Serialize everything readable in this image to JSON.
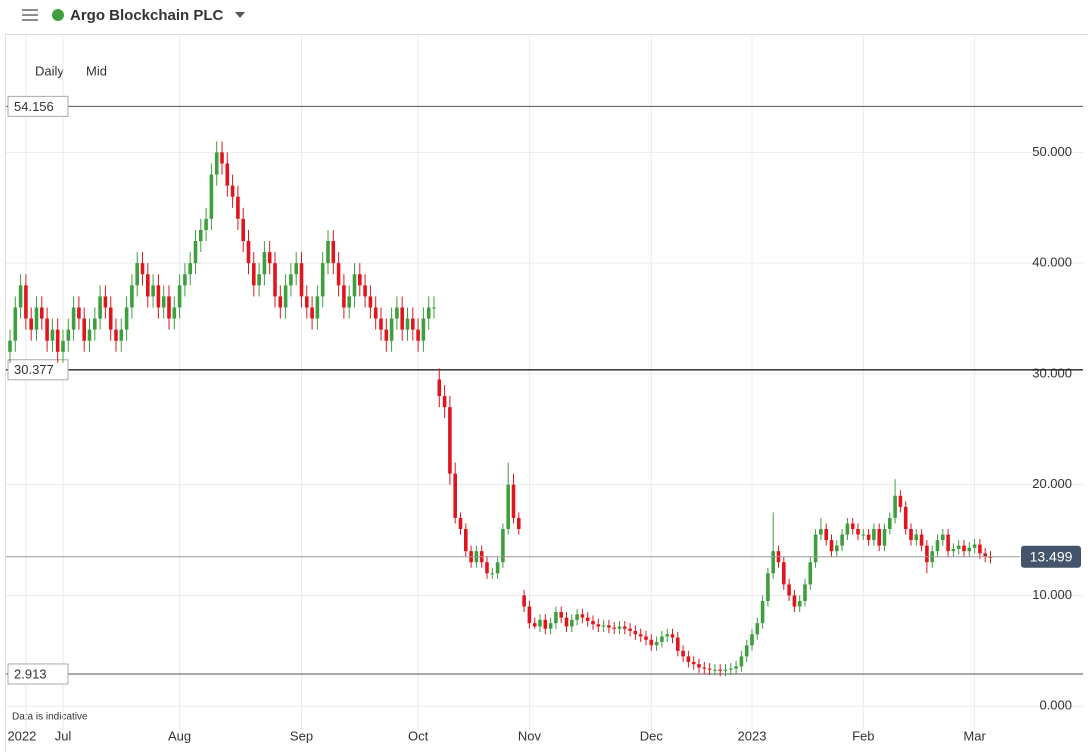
{
  "chart_data": {
    "type": "candlestick",
    "title": "Argo Blockchain PLC",
    "interval": "Daily",
    "price_type": "Mid",
    "note": "Data is indicative",
    "up_color": "#3f9f3f",
    "down_color": "#e0161e",
    "ylim": [
      -3.5,
      60.6
    ],
    "yticks": [
      {
        "value": 0,
        "label": "0.000"
      },
      {
        "value": 10,
        "label": "10.000"
      },
      {
        "value": 20,
        "label": "20.000"
      },
      {
        "value": 30,
        "label": "30.000"
      },
      {
        "value": 40,
        "label": "40.000"
      },
      {
        "value": 50,
        "label": "50.000"
      }
    ],
    "grid": true,
    "reference_lines": [
      54.156,
      30.377,
      2.913
    ],
    "last_price": 13.499,
    "categories": [
      null,
      null,
      null,
      "2022",
      null,
      null,
      null,
      null,
      null,
      null,
      "Jul",
      null,
      null,
      null,
      null,
      null,
      null,
      null,
      null,
      null,
      null,
      null,
      null,
      null,
      null,
      null,
      null,
      null,
      null,
      null,
      null,
      null,
      "Aug",
      null,
      null,
      null,
      null,
      null,
      null,
      null,
      null,
      null,
      null,
      null,
      null,
      null,
      null,
      null,
      null,
      null,
      null,
      null,
      null,
      null,
      null,
      "Sep",
      null,
      null,
      null,
      null,
      null,
      null,
      null,
      null,
      null,
      null,
      null,
      null,
      null,
      null,
      null,
      null,
      null,
      null,
      null,
      null,
      null,
      "Oct",
      null,
      null,
      null,
      null,
      null,
      null,
      null,
      null,
      null,
      null,
      null,
      null,
      null,
      null,
      null,
      null,
      null,
      null,
      null,
      null,
      "Nov",
      null,
      null,
      null,
      null,
      null,
      null,
      null,
      null,
      null,
      null,
      null,
      null,
      null,
      null,
      null,
      null,
      null,
      null,
      null,
      null,
      null,
      null,
      "Dec",
      null,
      null,
      null,
      null,
      null,
      null,
      null,
      null,
      null,
      null,
      null,
      null,
      null,
      null,
      null,
      null,
      null,
      null,
      "2023",
      null,
      null,
      null,
      null,
      null,
      null,
      null,
      null,
      null,
      null,
      null,
      null,
      null,
      null,
      null,
      null,
      null,
      null,
      null,
      null,
      "Feb",
      null,
      null,
      null,
      null,
      null,
      null,
      null,
      null,
      null,
      null,
      null,
      null,
      null,
      null,
      null,
      null,
      null,
      null,
      null,
      null,
      "Mar",
      null,
      null,
      null
    ],
    "open": [
      32,
      33,
      36,
      38,
      35,
      34,
      36,
      35,
      33,
      34,
      32,
      33,
      34,
      36,
      35,
      33,
      34,
      35,
      37,
      36,
      34,
      33,
      34,
      36,
      38,
      40,
      39,
      37,
      38,
      36,
      37,
      35,
      36,
      38,
      39,
      40,
      42,
      43,
      44,
      48,
      50,
      49,
      47,
      46,
      44,
      42,
      40,
      38,
      39,
      41,
      40,
      37,
      36,
      38,
      39,
      40,
      37,
      36,
      35,
      37,
      40,
      42,
      40,
      38,
      36,
      37,
      39,
      38,
      37,
      36,
      35,
      34,
      33,
      35,
      36,
      34,
      35,
      34,
      33,
      35,
      36,
      29.5,
      28,
      27,
      21,
      17,
      16,
      14,
      13,
      14,
      13,
      12,
      12,
      13,
      16,
      20,
      17,
      10,
      9,
      7.5,
      7.2,
      7.8,
      7,
      7.5,
      8.5,
      8,
      7.2,
      7.8,
      8.3,
      8,
      7.7,
      7.4,
      7.2,
      7.3,
      7.1,
      7,
      7.2,
      7,
      6.8,
      6.5,
      6.3,
      6,
      5.5,
      5.8,
      6.3,
      6.5,
      6.2,
      5,
      4.5,
      4,
      3.8,
      3.5,
      3.4,
      3.3,
      3.3,
      3.2,
      3.3,
      3.4,
      3.6,
      4.5,
      5.5,
      6.5,
      7.5,
      9.5,
      12,
      14,
      13,
      11,
      10,
      9,
      9.5,
      11,
      13,
      15.5,
      16,
      15,
      14,
      14.5,
      15.5,
      16.5,
      16,
      15.5,
      15.5,
      15,
      16,
      14.5,
      16,
      17,
      19,
      18,
      16,
      15,
      15.5,
      14.5,
      13,
      14,
      15,
      15.5,
      14,
      14.2,
      14.5,
      14,
      14.3,
      14.6,
      13.8,
      13.5
    ],
    "high": [
      34,
      37,
      39,
      39,
      36,
      37,
      37,
      36,
      35,
      35,
      34,
      35,
      37,
      37,
      36,
      35,
      36,
      38,
      38,
      37,
      35,
      35,
      37,
      39,
      41,
      41,
      40,
      39,
      39,
      38,
      38,
      37,
      39,
      40,
      41,
      43,
      44,
      45,
      49,
      51,
      51,
      50,
      48,
      47,
      45,
      43,
      41,
      40,
      42,
      42,
      41,
      38,
      39,
      40,
      41,
      41,
      38,
      37,
      38,
      41,
      43,
      43,
      41,
      39,
      38,
      40,
      40,
      39,
      38,
      37,
      36,
      35,
      36,
      37,
      37,
      36,
      36,
      35,
      36,
      37,
      37,
      30.5,
      29,
      28,
      22,
      17.5,
      16.5,
      14.5,
      14.5,
      14.5,
      13.5,
      12.5,
      13.5,
      16.5,
      22,
      21,
      17.5,
      10.5,
      9.5,
      8,
      8.3,
      8.3,
      8,
      9,
      9,
      8.5,
      8.3,
      8.8,
      8.8,
      8.5,
      8.2,
      7.9,
      7.8,
      7.8,
      7.6,
      7.7,
      7.7,
      7.5,
      7.3,
      7,
      6.8,
      6.5,
      6.3,
      6.8,
      7,
      7,
      6.7,
      5.5,
      5,
      4.5,
      4.3,
      4,
      3.9,
      3.8,
      3.8,
      3.8,
      3.9,
      4.1,
      5,
      6,
      7,
      8,
      10,
      12.5,
      17.5,
      14.5,
      13.5,
      11.5,
      10.5,
      10,
      11.5,
      13.5,
      16,
      17,
      16.5,
      15.5,
      15,
      16,
      17,
      17,
      16.5,
      16,
      16,
      16.5,
      16.5,
      16.5,
      17.5,
      20.5,
      19.5,
      18.5,
      16.5,
      16,
      16,
      15,
      14.5,
      15.5,
      16,
      16,
      14.7,
      15,
      15,
      14.8,
      15.1,
      15.1,
      14.3,
      14
    ],
    "low": [
      31,
      32,
      35,
      34,
      33,
      33,
      34,
      32,
      32,
      31,
      31,
      32,
      33,
      34,
      32,
      32,
      33,
      34,
      35,
      33,
      32,
      32,
      33,
      35,
      37,
      38,
      36,
      36,
      35,
      35,
      34,
      34,
      35,
      37,
      38,
      39,
      41,
      42,
      43,
      47,
      48,
      46,
      45,
      43,
      41,
      39,
      37,
      37,
      38,
      39,
      36,
      35,
      35,
      37,
      38,
      36,
      35,
      34,
      34,
      36,
      39,
      39,
      37,
      35,
      35,
      36,
      37,
      36,
      35,
      34,
      33,
      32,
      32,
      34,
      33,
      33,
      33,
      32,
      32,
      34,
      35,
      27,
      26,
      20,
      16.5,
      15.5,
      13.5,
      12.5,
      12.5,
      12.5,
      11.5,
      11.5,
      11.5,
      12.5,
      15.5,
      16.5,
      15.5,
      8.5,
      7,
      7,
      6.7,
      6.5,
      6.5,
      7,
      7.5,
      6.7,
      6.7,
      7.3,
      7.5,
      7.2,
      6.9,
      6.7,
      6.7,
      6.6,
      6.5,
      6.5,
      6.5,
      6.3,
      6,
      5.8,
      5.5,
      5,
      5,
      5.3,
      5.8,
      5.7,
      4.5,
      4,
      3.5,
      3.3,
      3,
      2.9,
      2.8,
      2.8,
      2.7,
      2.7,
      2.8,
      2.9,
      3.1,
      4,
      5,
      6,
      7,
      9,
      11.5,
      12.5,
      10.5,
      9.5,
      8.5,
      8.5,
      9,
      10.5,
      12.5,
      15,
      14.5,
      13.5,
      13.5,
      14,
      15,
      15.5,
      15,
      15,
      14.5,
      14.5,
      14,
      14,
      15.5,
      16.5,
      17.5,
      15.5,
      14.5,
      14.5,
      14,
      12,
      12.5,
      13.5,
      14.5,
      13.5,
      13.5,
      13.7,
      13.5,
      13.5,
      13.8,
      13.3,
      13,
      12.9
    ],
    "close": [
      33,
      36,
      38,
      35,
      34,
      36,
      35,
      33,
      34,
      32,
      33,
      34,
      36,
      35,
      33,
      34,
      35,
      37,
      36,
      34,
      33,
      34,
      36,
      38,
      40,
      39,
      37,
      38,
      36,
      37,
      35,
      36,
      38,
      39,
      40,
      42,
      43,
      44,
      48,
      50,
      49,
      47,
      46,
      44,
      42,
      40,
      38,
      39,
      41,
      40,
      37,
      36,
      38,
      39,
      40,
      37,
      36,
      35,
      37,
      40,
      42,
      40,
      38,
      36,
      37,
      39,
      38,
      37,
      36,
      35,
      34,
      33,
      35,
      36,
      34,
      35,
      34,
      33,
      35,
      36,
      36,
      28,
      27,
      21,
      17,
      16,
      14,
      13,
      14,
      13,
      12,
      12,
      13,
      16,
      20,
      17,
      16,
      9,
      7.5,
      7.2,
      7.8,
      7,
      7.5,
      8.5,
      8,
      7.2,
      7.8,
      8.3,
      8,
      7.7,
      7.4,
      7.2,
      7.3,
      7.1,
      7,
      7.2,
      7,
      6.8,
      6.5,
      6.3,
      6,
      5.5,
      5.8,
      6.3,
      6.5,
      6.2,
      5,
      4.5,
      4,
      3.8,
      3.5,
      3.4,
      3.3,
      3.3,
      3.2,
      3.3,
      3.4,
      3.6,
      4.5,
      5.5,
      6.5,
      7.5,
      9.5,
      12,
      14,
      13,
      11,
      10,
      9,
      9.5,
      11,
      13,
      15.5,
      16,
      15,
      14,
      14.5,
      15.5,
      16.5,
      16,
      15.5,
      15.5,
      15,
      16,
      14.5,
      16,
      17,
      19,
      18,
      16,
      15,
      15.5,
      14.5,
      13,
      14,
      15,
      15.5,
      14,
      14.2,
      14.5,
      14,
      14.3,
      14.6,
      13.8,
      13.5,
      13.4
    ]
  }
}
